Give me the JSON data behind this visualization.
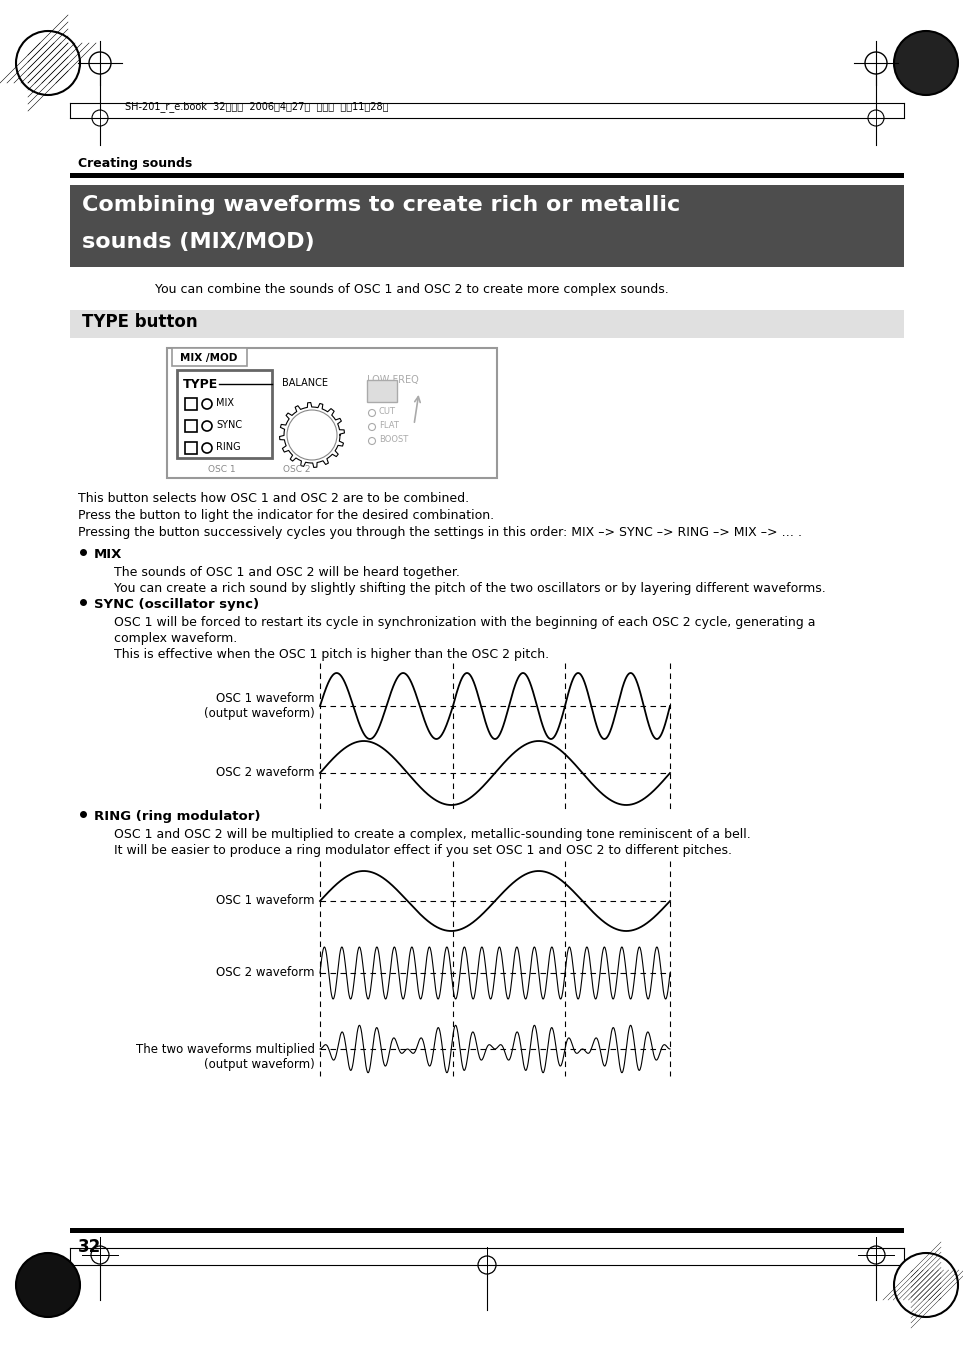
{
  "page_bg": "#ffffff",
  "header_text": "SH-201_r_e.book  32ページ  ２００６年４月27日  木曜日  午前１１時２８分",
  "section_label": "Creating sounds",
  "main_title_line1": "Combining waveforms to create rich or metallic",
  "main_title_line2": "sounds (MIX/MOD)",
  "intro_text": "You can combine the sounds of OSC 1 and OSC 2 to create more complex sounds.",
  "type_button_label": "TYPE button",
  "body_text_1": "This button selects how OSC 1 and OSC 2 are to be combined.",
  "body_text_2": "Press the button to light the indicator for the desired combination.",
  "body_text_3": "Pressing the button successively cycles you through the settings in this order: MIX –> SYNC –> RING –> MIX –> … .",
  "bullet_mix_title": "MIX",
  "bullet_mix_1": "The sounds of OSC 1 and OSC 2 will be heard together.",
  "bullet_mix_2": "You can create a rich sound by slightly shifting the pitch of the two oscillators or by layering different waveforms.",
  "bullet_sync_title": "SYNC (oscillator sync)",
  "bullet_sync_1": "OSC 1 will be forced to restart its cycle in synchronization with the beginning of each OSC 2 cycle, generating a",
  "bullet_sync_1b": "complex waveform.",
  "bullet_sync_2": "This is effective when the OSC 1 pitch is higher than the OSC 2 pitch.",
  "sync_osc1_label": "OSC 1 waveform\n(output waveform)",
  "sync_osc2_label": "OSC 2 waveform",
  "bullet_ring_title": "RING (ring modulator)",
  "bullet_ring_1": "OSC 1 and OSC 2 will be multiplied to create a complex, metallic-sounding tone reminiscent of a bell.",
  "bullet_ring_2": "It will be easier to produce a ring modulator effect if you set OSC 1 and OSC 2 to different pitches.",
  "ring_osc1_label": "OSC 1 waveform",
  "ring_osc2_label": "OSC 2 waveform",
  "ring_out_label": "The two waveforms multiplied\n(output waveform)",
  "page_number": "32"
}
